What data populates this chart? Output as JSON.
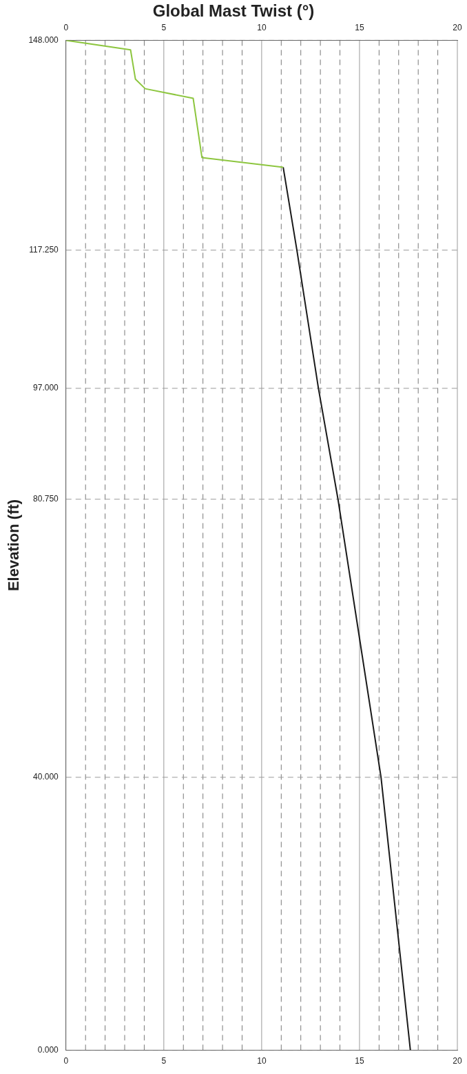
{
  "chart_data": {
    "type": "line",
    "title": "Global Mast Twist (°)",
    "ylabel": "Elevation (ft)",
    "series": [
      {
        "color": "#8dc63f",
        "x": [
          0,
          3.3,
          3.55,
          4.05,
          6.5,
          6.95,
          11.1
        ],
        "values": [
          148,
          146.6,
          142.3,
          140.9,
          139.5,
          130.8,
          129.4
        ]
      },
      {
        "color": "#1a1a1a",
        "x": [
          11.1,
          11.8,
          12.9,
          13.9,
          16.1,
          17.6
        ],
        "values": [
          129.4,
          117.25,
          97,
          80.75,
          40,
          0
        ]
      }
    ],
    "xlim": [
      0,
      20
    ],
    "xticks": [
      0,
      {
        "value": 1,
        "label": null
      },
      {
        "value": 2,
        "label": null
      },
      {
        "value": 3,
        "label": null
      },
      {
        "value": 4,
        "label": null
      },
      5,
      {
        "value": 6,
        "label": null
      },
      {
        "value": 7,
        "label": null
      },
      {
        "value": 8,
        "label": null
      },
      {
        "value": 9,
        "label": null
      },
      10,
      {
        "value": 11,
        "label": null
      },
      {
        "value": 12,
        "label": null
      },
      {
        "value": 13,
        "label": null
      },
      {
        "value": 14,
        "label": null
      },
      15,
      {
        "value": 16,
        "label": null
      },
      {
        "value": 17,
        "label": null
      },
      {
        "value": 18,
        "label": null
      },
      {
        "value": 19,
        "label": null
      },
      20
    ],
    "x2lim": [
      0,
      20
    ],
    "x2ticks": [
      0,
      5,
      10,
      15,
      20
    ],
    "ylim": [
      0,
      148
    ],
    "yticks": [
      {
        "value": 0,
        "label": "0.000"
      },
      {
        "value": 40,
        "label": "40.000"
      },
      {
        "value": 80.75,
        "label": "80.750"
      },
      {
        "value": 97,
        "label": "97.000"
      },
      {
        "value": 117.25,
        "label": "117.250"
      },
      {
        "value": 148,
        "label": "148.000"
      }
    ],
    "grid": true,
    "legend": false,
    "marker": "none",
    "line_style": "solid"
  }
}
